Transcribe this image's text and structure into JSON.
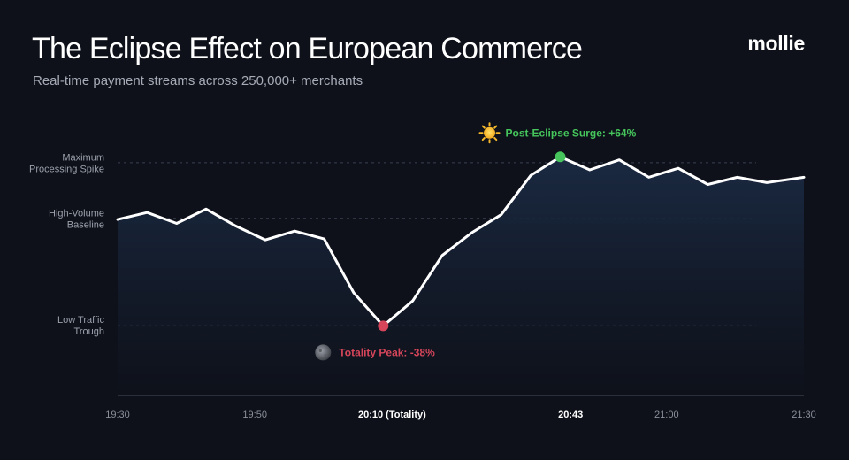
{
  "header": {
    "title": "The Eclipse Effect on European Commerce",
    "subtitle": "Real-time payment streams across 250,000+ merchants",
    "brand": "mollie"
  },
  "colors": {
    "background": "#0e111a",
    "line": "#ffffff",
    "area_top": "#1b2b44",
    "trough_marker": "#d6455a",
    "peak_marker": "#45c55b"
  },
  "chart_data": {
    "type": "area",
    "title": "The Eclipse Effect on European Commerce",
    "subtitle": "Real-time payment streams across 250,000+ merchants",
    "xlabel": "",
    "ylabel": "",
    "x_ticks": [
      {
        "label": "19:30",
        "x": 0,
        "emphasis": false
      },
      {
        "label": "19:50",
        "x": 20,
        "emphasis": false
      },
      {
        "label": "20:10 (Totality)",
        "x": 40,
        "emphasis": true
      },
      {
        "label": "20:43",
        "x": 66,
        "emphasis": true
      },
      {
        "label": "21:00",
        "x": 80,
        "emphasis": false
      },
      {
        "label": "21:30",
        "x": 100,
        "emphasis": false
      }
    ],
    "xlim": [
      0,
      100
    ],
    "y_levels": [
      {
        "label": [
          "Maximum",
          "Processing Spike"
        ],
        "value": 100
      },
      {
        "label": [
          "High-Volume",
          "Baseline"
        ],
        "value": 76
      },
      {
        "label": [
          "Low Traffic",
          "Trough"
        ],
        "value": 30
      }
    ],
    "ylim": [
      -0.4,
      103
    ],
    "grid": true,
    "series": [
      {
        "x": [
          0,
          4.3,
          8.6,
          12.9,
          17.2,
          21.5,
          25.8,
          30.1,
          34.4,
          38.7,
          43.0,
          47.3,
          51.6,
          55.9,
          60.2,
          64.5,
          68.8,
          73.1,
          77.4,
          81.7,
          86.0,
          90.3,
          94.6,
          100
        ],
        "values": [
          75.5,
          78.5,
          73.8,
          80,
          72.7,
          66.7,
          70.5,
          67.1,
          43.9,
          29.6,
          40.4,
          60,
          69.8,
          77.6,
          94.5,
          102.5,
          96.9,
          101.2,
          93.7,
          97.6,
          90.6,
          93.7,
          91.4,
          93.7
        ]
      }
    ],
    "annotations": [
      {
        "text": "Totality Peak: -38%",
        "icon": "moon-icon",
        "x": 38.7,
        "y": 29.6,
        "color": "#d6455a"
      },
      {
        "text": "Post-Eclipse Surge: +64%",
        "icon": "sun-icon",
        "x": 64.5,
        "y": 102.5,
        "color": "#45c55b"
      }
    ]
  }
}
